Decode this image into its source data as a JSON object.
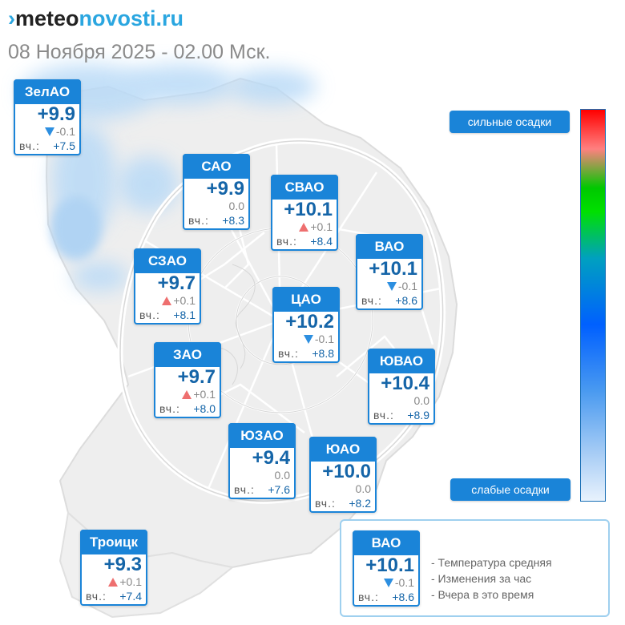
{
  "header": {
    "logo_mark": "›",
    "logo_part1": "meteo",
    "logo_part2": "novosti.ru",
    "date": "08 Ноября 2025 - 02.00 Мск."
  },
  "districts": [
    {
      "name": "ЗелАО",
      "temp": "+9.9",
      "trend": "down",
      "delta": "-0.1",
      "yesterday_label": "вч.:",
      "yesterday": "+7.5"
    },
    {
      "name": "САО",
      "temp": "+9.9",
      "trend": "none",
      "delta": "0.0",
      "yesterday_label": "вч.:",
      "yesterday": "+8.3"
    },
    {
      "name": "СВАО",
      "temp": "+10.1",
      "trend": "up",
      "delta": "+0.1",
      "yesterday_label": "вч.:",
      "yesterday": "+8.4"
    },
    {
      "name": "ВАО",
      "temp": "+10.1",
      "trend": "down",
      "delta": "-0.1",
      "yesterday_label": "вч.:",
      "yesterday": "+8.6"
    },
    {
      "name": "СЗАО",
      "temp": "+9.7",
      "trend": "up",
      "delta": "+0.1",
      "yesterday_label": "вч.:",
      "yesterday": "+8.1"
    },
    {
      "name": "ЦАО",
      "temp": "+10.2",
      "trend": "down",
      "delta": "-0.1",
      "yesterday_label": "вч.:",
      "yesterday": "+8.8"
    },
    {
      "name": "ЗАО",
      "temp": "+9.7",
      "trend": "up",
      "delta": "+0.1",
      "yesterday_label": "вч.:",
      "yesterday": "+8.0"
    },
    {
      "name": "ЮВАО",
      "temp": "+10.4",
      "trend": "none",
      "delta": "0.0",
      "yesterday_label": "вч.:",
      "yesterday": "+8.9"
    },
    {
      "name": "ЮЗАО",
      "temp": "+9.4",
      "trend": "none",
      "delta": "0.0",
      "yesterday_label": "вч.:",
      "yesterday": "+7.6"
    },
    {
      "name": "ЮАО",
      "temp": "+10.0",
      "trend": "none",
      "delta": "0.0",
      "yesterday_label": "вч.:",
      "yesterday": "+8.2"
    },
    {
      "name": "Троицк",
      "temp": "+9.3",
      "trend": "up",
      "delta": "+0.1",
      "yesterday_label": "вч.:",
      "yesterday": "+7.4"
    }
  ],
  "precip_scale": {
    "top_label": "сильные осадки",
    "bottom_label": "слабые осадки",
    "colors": [
      "#ff0000",
      "#ff8080",
      "#00c800",
      "#00e000",
      "#00a0c0",
      "#0060ff",
      "#4a9af0",
      "#a8cdf5",
      "#e8f2fd"
    ]
  },
  "legend": {
    "example": {
      "name": "ВАО",
      "temp": "+10.1",
      "trend": "down",
      "delta": "-0.1",
      "yesterday_label": "вч.:",
      "yesterday": "+8.6"
    },
    "lines": [
      "- Температура средняя",
      "- Изменения за час",
      "- Вчера в это время"
    ]
  },
  "colors": {
    "brand_blue": "#1a84d8",
    "temp_text": "#1565a8",
    "trend_up": "#ee6f6f",
    "trend_down": "#2d8fe0",
    "map_land": "#eeeeee",
    "map_roads": "#ffffff",
    "precip_light": "#b9daf7"
  }
}
